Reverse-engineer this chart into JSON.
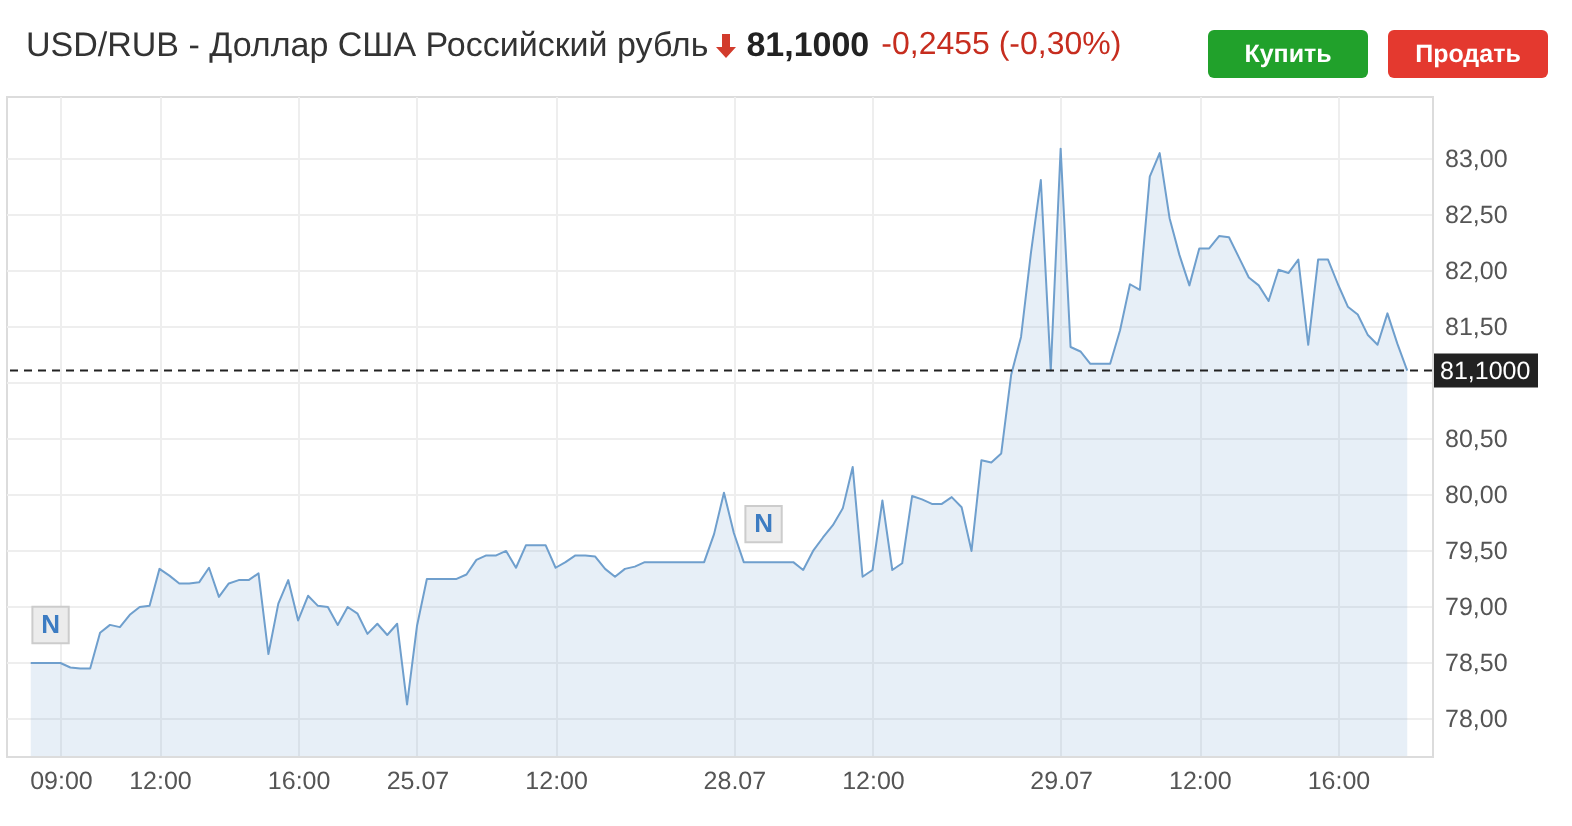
{
  "chart_data": {
    "type": "area",
    "title": "USD/RUB - Доллар США Российский рубль",
    "subtitle": "81,1000",
    "annotations": [
      "-0,2455 (-0,30%)",
      "Купить",
      "Продать"
    ],
    "categories": [
      null,
      null,
      null,
      "09:00",
      null,
      null,
      null,
      null,
      null,
      null,
      null,
      null,
      null,
      "12:00",
      null,
      null,
      null,
      null,
      null,
      null,
      null,
      null,
      null,
      null,
      null,
      null,
      null,
      "16:00",
      null,
      null,
      null,
      null,
      null,
      null,
      null,
      null,
      null,
      null,
      null,
      "25.07",
      null,
      null,
      null,
      null,
      null,
      null,
      null,
      null,
      null,
      null,
      null,
      null,
      null,
      "12:00",
      null,
      null,
      null,
      null,
      null,
      null,
      null,
      null,
      null,
      null,
      null,
      null,
      null,
      null,
      null,
      null,
      null,
      "28.07",
      null,
      null,
      null,
      null,
      null,
      null,
      null,
      null,
      null,
      null,
      null,
      null,
      null,
      "12:00",
      null,
      null,
      null,
      null,
      null,
      null,
      null,
      null,
      null,
      null,
      null,
      null,
      null,
      null,
      null,
      null,
      null,
      null,
      "29.07",
      null,
      null,
      null,
      null,
      null,
      null,
      null,
      null,
      null,
      null,
      null,
      null,
      null,
      "12:00",
      null,
      null,
      null,
      null,
      null,
      null,
      null,
      null,
      null,
      null,
      null,
      null,
      null,
      "16:00",
      null,
      null,
      null,
      null,
      null,
      null,
      null
    ],
    "values": [
      78.49,
      78.49,
      78.49,
      78.49,
      78.45,
      78.44,
      78.44,
      78.76,
      78.83,
      78.81,
      78.92,
      78.99,
      79.0,
      79.33,
      79.27,
      79.2,
      79.2,
      79.21,
      79.34,
      79.08,
      79.2,
      79.23,
      79.23,
      79.29,
      78.57,
      79.02,
      79.23,
      78.87,
      79.09,
      79.0,
      78.99,
      78.83,
      78.99,
      78.93,
      78.75,
      78.84,
      78.74,
      78.84,
      78.12,
      78.82,
      79.24,
      79.24,
      79.24,
      79.24,
      79.28,
      79.41,
      79.45,
      79.45,
      79.49,
      79.34,
      79.54,
      79.54,
      79.54,
      79.34,
      79.39,
      79.45,
      79.45,
      79.44,
      79.33,
      79.26,
      79.33,
      79.35,
      79.39,
      79.39,
      79.39,
      79.39,
      79.39,
      79.39,
      79.39,
      79.64,
      80.01,
      79.65,
      79.39,
      79.39,
      79.39,
      79.39,
      79.39,
      79.39,
      79.32,
      79.49,
      79.61,
      79.72,
      79.87,
      80.24,
      79.26,
      79.32,
      79.94,
      79.32,
      79.38,
      79.98,
      79.95,
      79.91,
      79.91,
      79.97,
      79.88,
      79.49,
      80.3,
      80.28,
      80.36,
      81.06,
      81.4,
      82.15,
      82.8,
      81.1,
      83.08,
      81.31,
      81.27,
      81.16,
      81.16,
      81.16,
      81.46,
      81.87,
      81.82,
      82.83,
      83.04,
      82.46,
      82.13,
      81.86,
      82.19,
      82.19,
      82.3,
      82.29,
      82.11,
      81.93,
      81.86,
      81.72,
      82.0,
      81.97,
      82.09,
      81.33,
      82.09,
      82.09,
      81.87,
      81.67,
      81.6,
      81.42,
      81.33,
      81.61,
      81.34,
      81.1
    ],
    "value_labels": [
      null,
      null,
      "N",
      null,
      null,
      null,
      null,
      null,
      null,
      null,
      null,
      null,
      null,
      null,
      null,
      null,
      null,
      null,
      null,
      null,
      null,
      null,
      null,
      null,
      null,
      null,
      null,
      null,
      null,
      null,
      null,
      null,
      null,
      null,
      null,
      null,
      null,
      null,
      null,
      null,
      null,
      null,
      null,
      null,
      null,
      null,
      null,
      null,
      null,
      null,
      null,
      null,
      null,
      null,
      null,
      null,
      null,
      null,
      null,
      null,
      null,
      null,
      null,
      null,
      null,
      null,
      null,
      null,
      null,
      null,
      null,
      null,
      null,
      null,
      "N",
      null,
      null,
      null,
      null,
      null,
      null,
      null,
      null,
      null,
      null,
      null,
      null,
      null,
      null,
      null,
      null,
      null,
      null,
      null,
      null,
      null,
      null,
      null,
      null,
      null,
      null,
      null,
      null,
      null,
      null,
      null,
      null,
      null,
      null,
      null,
      null,
      null,
      null,
      null,
      null,
      null,
      null,
      null,
      null,
      null,
      null,
      null,
      null,
      null,
      null,
      null,
      null,
      null,
      null,
      null,
      null,
      null,
      null,
      null,
      null,
      null,
      null,
      null,
      null,
      null
    ],
    "color": "#6f9fcd",
    "ylim": [
      77.66,
      83.55
    ],
    "yticks": [
      {
        "value": 78,
        "label": "78,00"
      },
      {
        "value": 78.5,
        "label": "78,50"
      },
      {
        "value": 79,
        "label": "79,00"
      },
      {
        "value": 79.5,
        "label": "79,50"
      },
      {
        "value": 80,
        "label": "80,00"
      },
      {
        "value": 80.5,
        "label": "80,50"
      },
      {
        "value": 81,
        "label": null
      },
      {
        "value": 81.5,
        "label": "81,50"
      },
      {
        "value": 82,
        "label": "82,00"
      },
      {
        "value": 82.5,
        "label": "82,50"
      },
      {
        "value": 83,
        "label": "83,00"
      }
    ],
    "grid": true,
    "ref_lines": [
      {
        "axis": "y",
        "value": 81.1,
        "label": "81,1000",
        "color": "#222222",
        "line_style": "dashed"
      }
    ]
  }
}
